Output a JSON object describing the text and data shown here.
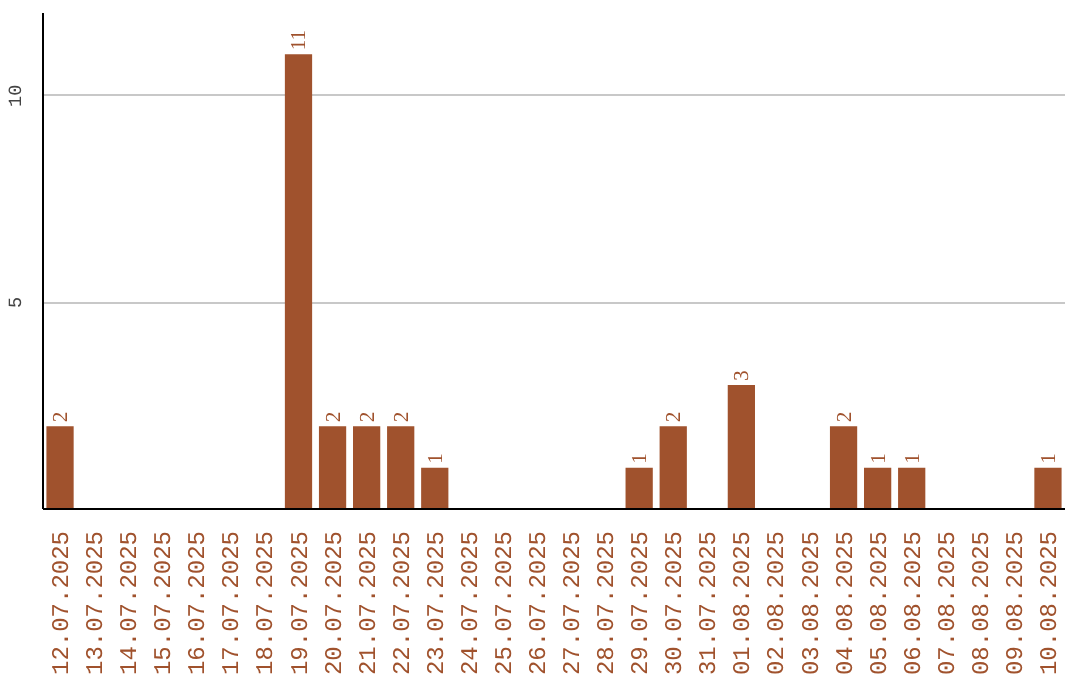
{
  "chart_data": {
    "type": "bar",
    "categories": [
      "12.07.2025",
      "13.07.2025",
      "14.07.2025",
      "15.07.2025",
      "16.07.2025",
      "17.07.2025",
      "18.07.2025",
      "19.07.2025",
      "20.07.2025",
      "21.07.2025",
      "22.07.2025",
      "23.07.2025",
      "24.07.2025",
      "25.07.2025",
      "26.07.2025",
      "27.07.2025",
      "28.07.2025",
      "29.07.2025",
      "30.07.2025",
      "31.07.2025",
      "01.08.2025",
      "02.08.2025",
      "03.08.2025",
      "04.08.2025",
      "05.08.2025",
      "06.08.2025",
      "07.08.2025",
      "08.08.2025",
      "09.08.2025",
      "10.08.2025"
    ],
    "values": [
      2,
      0,
      0,
      0,
      0,
      0,
      0,
      11,
      2,
      2,
      2,
      1,
      0,
      0,
      0,
      0,
      0,
      1,
      2,
      0,
      3,
      0,
      0,
      2,
      1,
      1,
      0,
      0,
      0,
      1
    ],
    "value_labels": [
      "2",
      null,
      null,
      null,
      null,
      null,
      null,
      "11",
      "2",
      "2",
      "2",
      "1",
      null,
      null,
      null,
      null,
      null,
      "1",
      "2",
      null,
      "3",
      null,
      null,
      "2",
      "1",
      "1",
      null,
      null,
      null,
      "1"
    ],
    "color": "#a0522d",
    "ylim": [
      0,
      12
    ],
    "yticks": [
      5,
      10
    ],
    "grid": "y"
  }
}
